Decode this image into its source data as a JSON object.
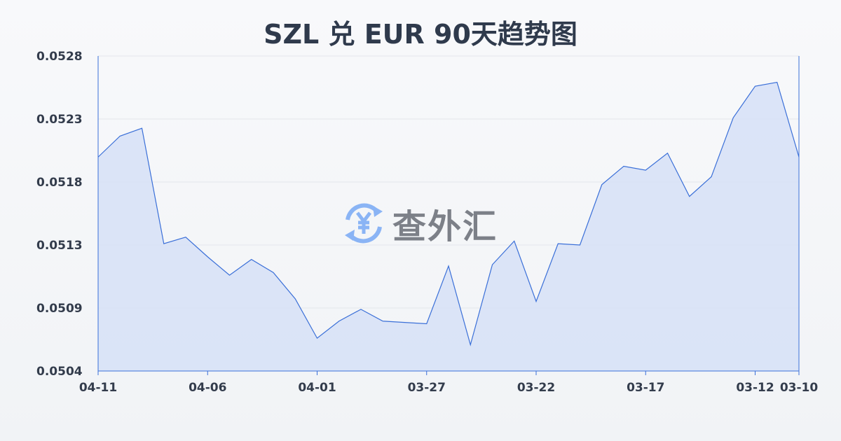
{
  "chart_data": {
    "type": "area",
    "title": "SZL 兑 EUR 90天趋势图",
    "xlabel": "",
    "ylabel": "",
    "x": [
      "04-11",
      "04-10",
      "04-09",
      "04-08",
      "04-07",
      "04-06",
      "04-05",
      "04-04",
      "04-03",
      "04-02",
      "04-01",
      "03-31",
      "03-30",
      "03-29",
      "03-28",
      "03-27",
      "03-26",
      "03-25",
      "03-24",
      "03-23",
      "03-22",
      "03-21",
      "03-20",
      "03-19",
      "03-18",
      "03-17",
      "03-16",
      "03-15",
      "03-14",
      "03-13",
      "03-12",
      "03-11",
      "03-10"
    ],
    "values": [
      0.05203,
      0.05219,
      0.05225,
      0.05137,
      0.05142,
      0.05127,
      0.05113,
      0.05125,
      0.05115,
      0.05095,
      0.05065,
      0.05078,
      0.05087,
      0.05078,
      0.05077,
      0.05076,
      0.0512,
      0.0506,
      0.05121,
      0.05139,
      0.05093,
      0.05137,
      0.05136,
      0.05182,
      0.05196,
      0.05193,
      0.05206,
      0.05173,
      0.05188,
      0.05233,
      0.05257,
      0.0526,
      0.05203
    ],
    "xticks": [
      "04-11",
      "04-06",
      "04-01",
      "03-27",
      "03-22",
      "03-17",
      "03-12",
      "03-10"
    ],
    "yticks": [
      "0.0504",
      "0.0509",
      "0.0513",
      "0.0518",
      "0.0523",
      "0.0528"
    ],
    "ylim": [
      0.0504,
      0.0528
    ],
    "grid": true,
    "colors": {
      "line": "#3a6fd8",
      "fill": "#d6e1f7",
      "grid": "#e3e6eb"
    }
  },
  "watermark": {
    "text": "查外汇",
    "icon": "yen-exchange-icon",
    "icon_color": "#8ab4f5"
  }
}
